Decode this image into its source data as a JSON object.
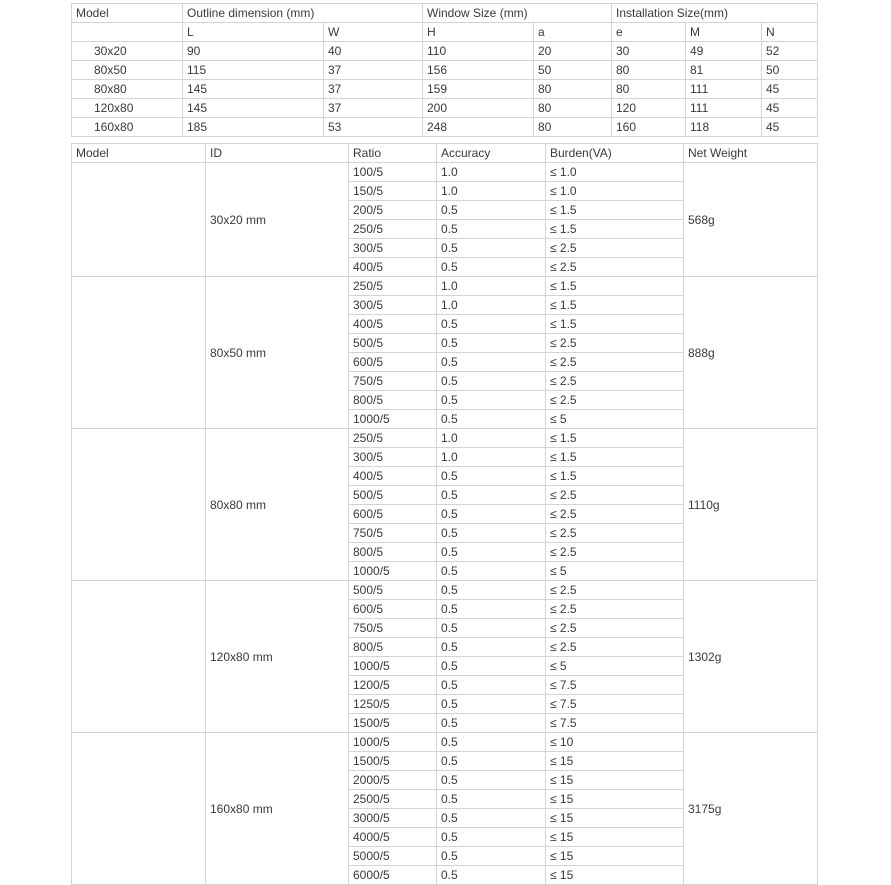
{
  "dimensions_table": {
    "header_top": [
      "Model",
      "Outline dimension (mm)",
      "Window Size (mm)",
      "Installation Size(mm)"
    ],
    "header_sub": [
      "",
      "L",
      "W",
      "H",
      "a",
      "e",
      "M",
      "N"
    ],
    "rows": [
      [
        "30x20",
        "90",
        "40",
        "110",
        "20",
        "30",
        "49",
        "52"
      ],
      [
        "80x50",
        "115",
        "37",
        "156",
        "50",
        "80",
        "81",
        "50"
      ],
      [
        "80x80",
        "145",
        "37",
        "159",
        "80",
        "80",
        "111",
        "45"
      ],
      [
        "120x80",
        "145",
        "37",
        "200",
        "80",
        "120",
        "111",
        "45"
      ],
      [
        "160x80",
        "185",
        "53",
        "248",
        "80",
        "160",
        "118",
        "45"
      ]
    ]
  },
  "spec_table": {
    "headers": [
      "Model",
      "ID",
      "Ratio",
      "Accuracy",
      "Burden(VA)",
      "Net Weight"
    ],
    "groups": [
      {
        "model": "",
        "id": "30x20 mm",
        "weight": "568g",
        "rows": [
          [
            "100/5",
            "1.0",
            "≤ 1.0"
          ],
          [
            "150/5",
            "1.0",
            "≤ 1.0"
          ],
          [
            "200/5",
            "0.5",
            "≤ 1.5"
          ],
          [
            "250/5",
            "0.5",
            "≤ 1.5"
          ],
          [
            "300/5",
            "0.5",
            "≤ 2.5"
          ],
          [
            "400/5",
            "0.5",
            "≤ 2.5"
          ]
        ]
      },
      {
        "model": "",
        "id": "80x50 mm",
        "weight": "888g",
        "rows": [
          [
            "250/5",
            "1.0",
            "≤ 1.5"
          ],
          [
            "300/5",
            "1.0",
            "≤ 1.5"
          ],
          [
            "400/5",
            "0.5",
            "≤ 1.5"
          ],
          [
            "500/5",
            "0.5",
            "≤ 2.5"
          ],
          [
            "600/5",
            "0.5",
            "≤ 2.5"
          ],
          [
            "750/5",
            "0.5",
            "≤ 2.5"
          ],
          [
            "800/5",
            "0.5",
            "≤ 2.5"
          ],
          [
            "1000/5",
            "0.5",
            "≤ 5"
          ]
        ]
      },
      {
        "model": "",
        "id": "80x80 mm",
        "weight": "1110g",
        "rows": [
          [
            "250/5",
            "1.0",
            "≤ 1.5"
          ],
          [
            "300/5",
            "1.0",
            "≤ 1.5"
          ],
          [
            "400/5",
            "0.5",
            "≤ 1.5"
          ],
          [
            "500/5",
            "0.5",
            "≤ 2.5"
          ],
          [
            "600/5",
            "0.5",
            "≤ 2.5"
          ],
          [
            "750/5",
            "0.5",
            "≤ 2.5"
          ],
          [
            "800/5",
            "0.5",
            "≤ 2.5"
          ],
          [
            "1000/5",
            "0.5",
            "≤ 5"
          ]
        ]
      },
      {
        "model": "",
        "id": "120x80 mm",
        "weight": "1302g",
        "rows": [
          [
            "500/5",
            "0.5",
            "≤ 2.5"
          ],
          [
            "600/5",
            "0.5",
            "≤ 2.5"
          ],
          [
            "750/5",
            "0.5",
            "≤ 2.5"
          ],
          [
            "800/5",
            "0.5",
            "≤ 2.5"
          ],
          [
            "1000/5",
            "0.5",
            "≤ 5"
          ],
          [
            "1200/5",
            "0.5",
            "≤ 7.5"
          ],
          [
            "1250/5",
            "0.5",
            "≤ 7.5"
          ],
          [
            "1500/5",
            "0.5",
            "≤ 7.5"
          ]
        ]
      },
      {
        "model": "",
        "id": "160x80 mm",
        "weight": "3175g",
        "rows": [
          [
            "1000/5",
            "0.5",
            "≤ 10"
          ],
          [
            "1500/5",
            "0.5",
            "≤ 15"
          ],
          [
            "2000/5",
            "0.5",
            "≤ 15"
          ],
          [
            "2500/5",
            "0.5",
            "≤ 15"
          ],
          [
            "3000/5",
            "0.5",
            "≤ 15"
          ],
          [
            "4000/5",
            "0.5",
            "≤ 15"
          ],
          [
            "5000/5",
            "0.5",
            "≤ 15"
          ],
          [
            "6000/5",
            "0.5",
            "≤ 15"
          ]
        ]
      }
    ]
  }
}
